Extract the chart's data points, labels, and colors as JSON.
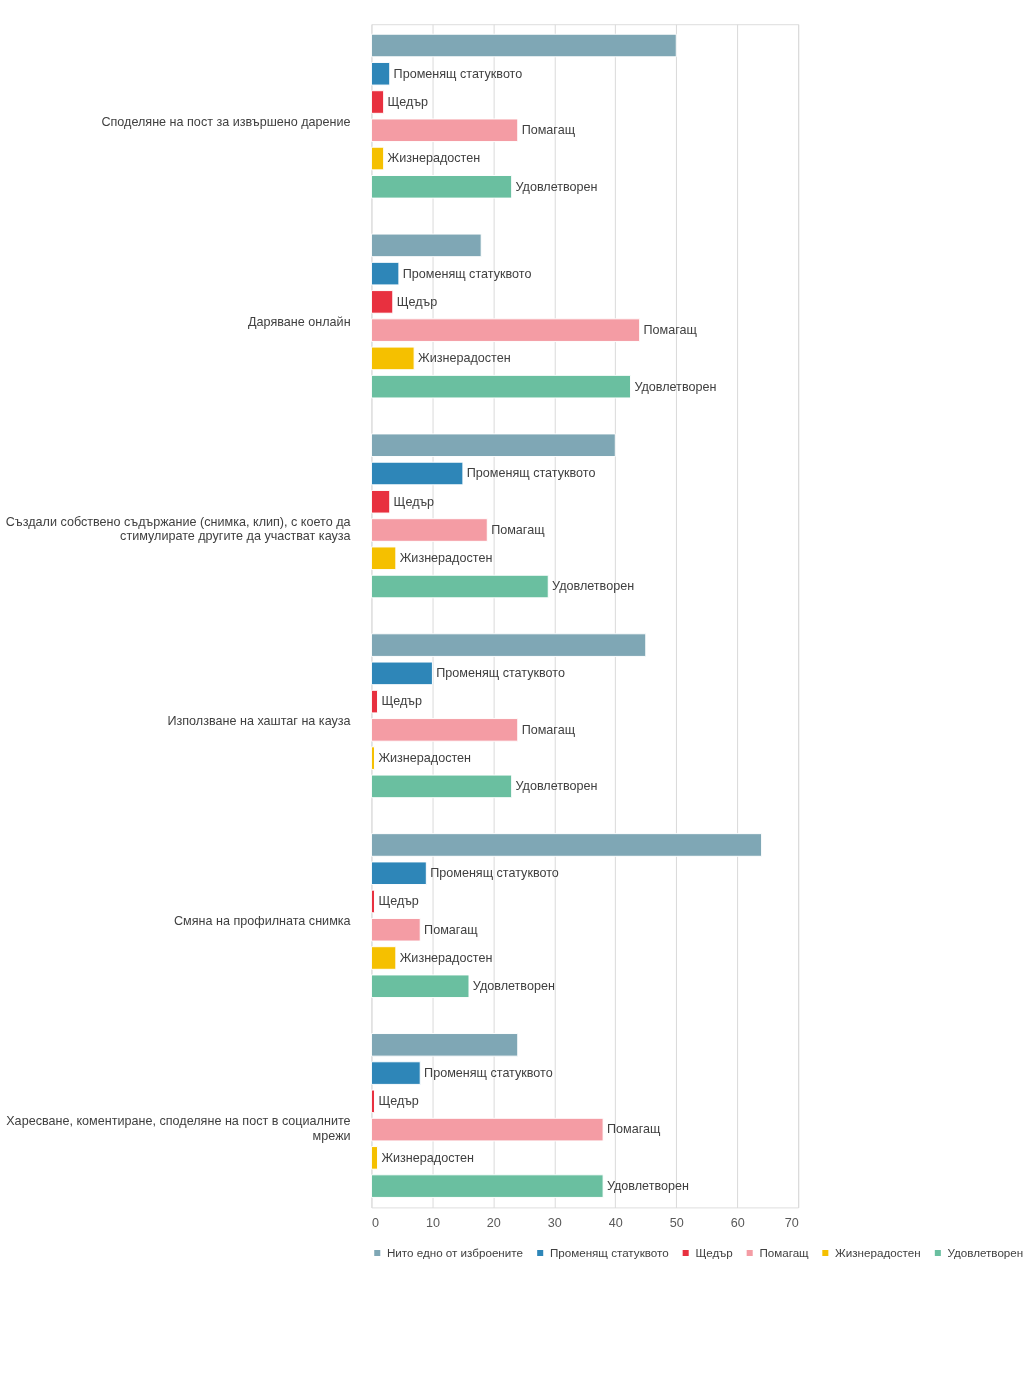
{
  "chart_data": {
    "type": "bar",
    "orientation": "horizontal",
    "categories": [
      "Споделяне на пост за извършено дарение",
      "Даряване онлайн",
      "Създали собствено съдържание (снимка, клип), с което да стимулирате другите да участват кауза",
      "Използване на хаштаг на кауза",
      "Смяна на профилната снимка",
      "Харесване, коментиране, споделяне на пост в социалните мрежи"
    ],
    "series": [
      {
        "name": "Нито едно от изброените",
        "color": "#7fa7b5",
        "values": [
          50,
          18,
          40,
          45,
          64,
          24
        ]
      },
      {
        "name": "Променящ статуквото",
        "color": "#2e86b8",
        "values": [
          3,
          4.5,
          15,
          10,
          9,
          8
        ],
        "value_labels": [
          "Променящ статуквото",
          "Променящ статуквото",
          "Променящ статуквото",
          "Променящ статуквото",
          "Променящ статуквото",
          "Променящ статуквото"
        ]
      },
      {
        "name": "Щедър",
        "color": "#e8303f",
        "values": [
          2,
          3.5,
          3,
          1,
          0.5,
          0.5
        ],
        "value_labels": [
          "Щедър",
          "Щедър",
          "Щедър",
          "Щедър",
          "Щедър",
          "Щедър"
        ]
      },
      {
        "name": "Помагащ",
        "color": "#f49ca4",
        "values": [
          24,
          44,
          19,
          24,
          8,
          38
        ],
        "value_labels": [
          "Помагащ",
          "Помагащ",
          "Помагащ",
          "Помагащ",
          "Помагащ",
          "Помагащ"
        ]
      },
      {
        "name": "Жизнерадостен",
        "color": "#f5c000",
        "values": [
          2,
          7,
          4,
          0.5,
          4,
          1
        ],
        "value_labels": [
          "Жизнерадостен",
          "Жизнерадостен",
          "Жизнерадостен",
          "Жизнерадостен",
          "Жизнерадостен",
          "Жизнерадостен"
        ]
      },
      {
        "name": "Удовлетворен",
        "color": "#6abfa0",
        "values": [
          23,
          42.5,
          29,
          23,
          16,
          38
        ],
        "value_labels": [
          "Удовлетворен",
          "Удовлетворен",
          "Удовлетворен",
          "Удовлетворен",
          "Удовлетворен",
          "Удовлетворен"
        ]
      }
    ],
    "xlim": [
      0,
      70
    ],
    "xticks": [
      0,
      10,
      20,
      30,
      40,
      50,
      60,
      70
    ],
    "grid": "x",
    "legend": "bottom"
  }
}
